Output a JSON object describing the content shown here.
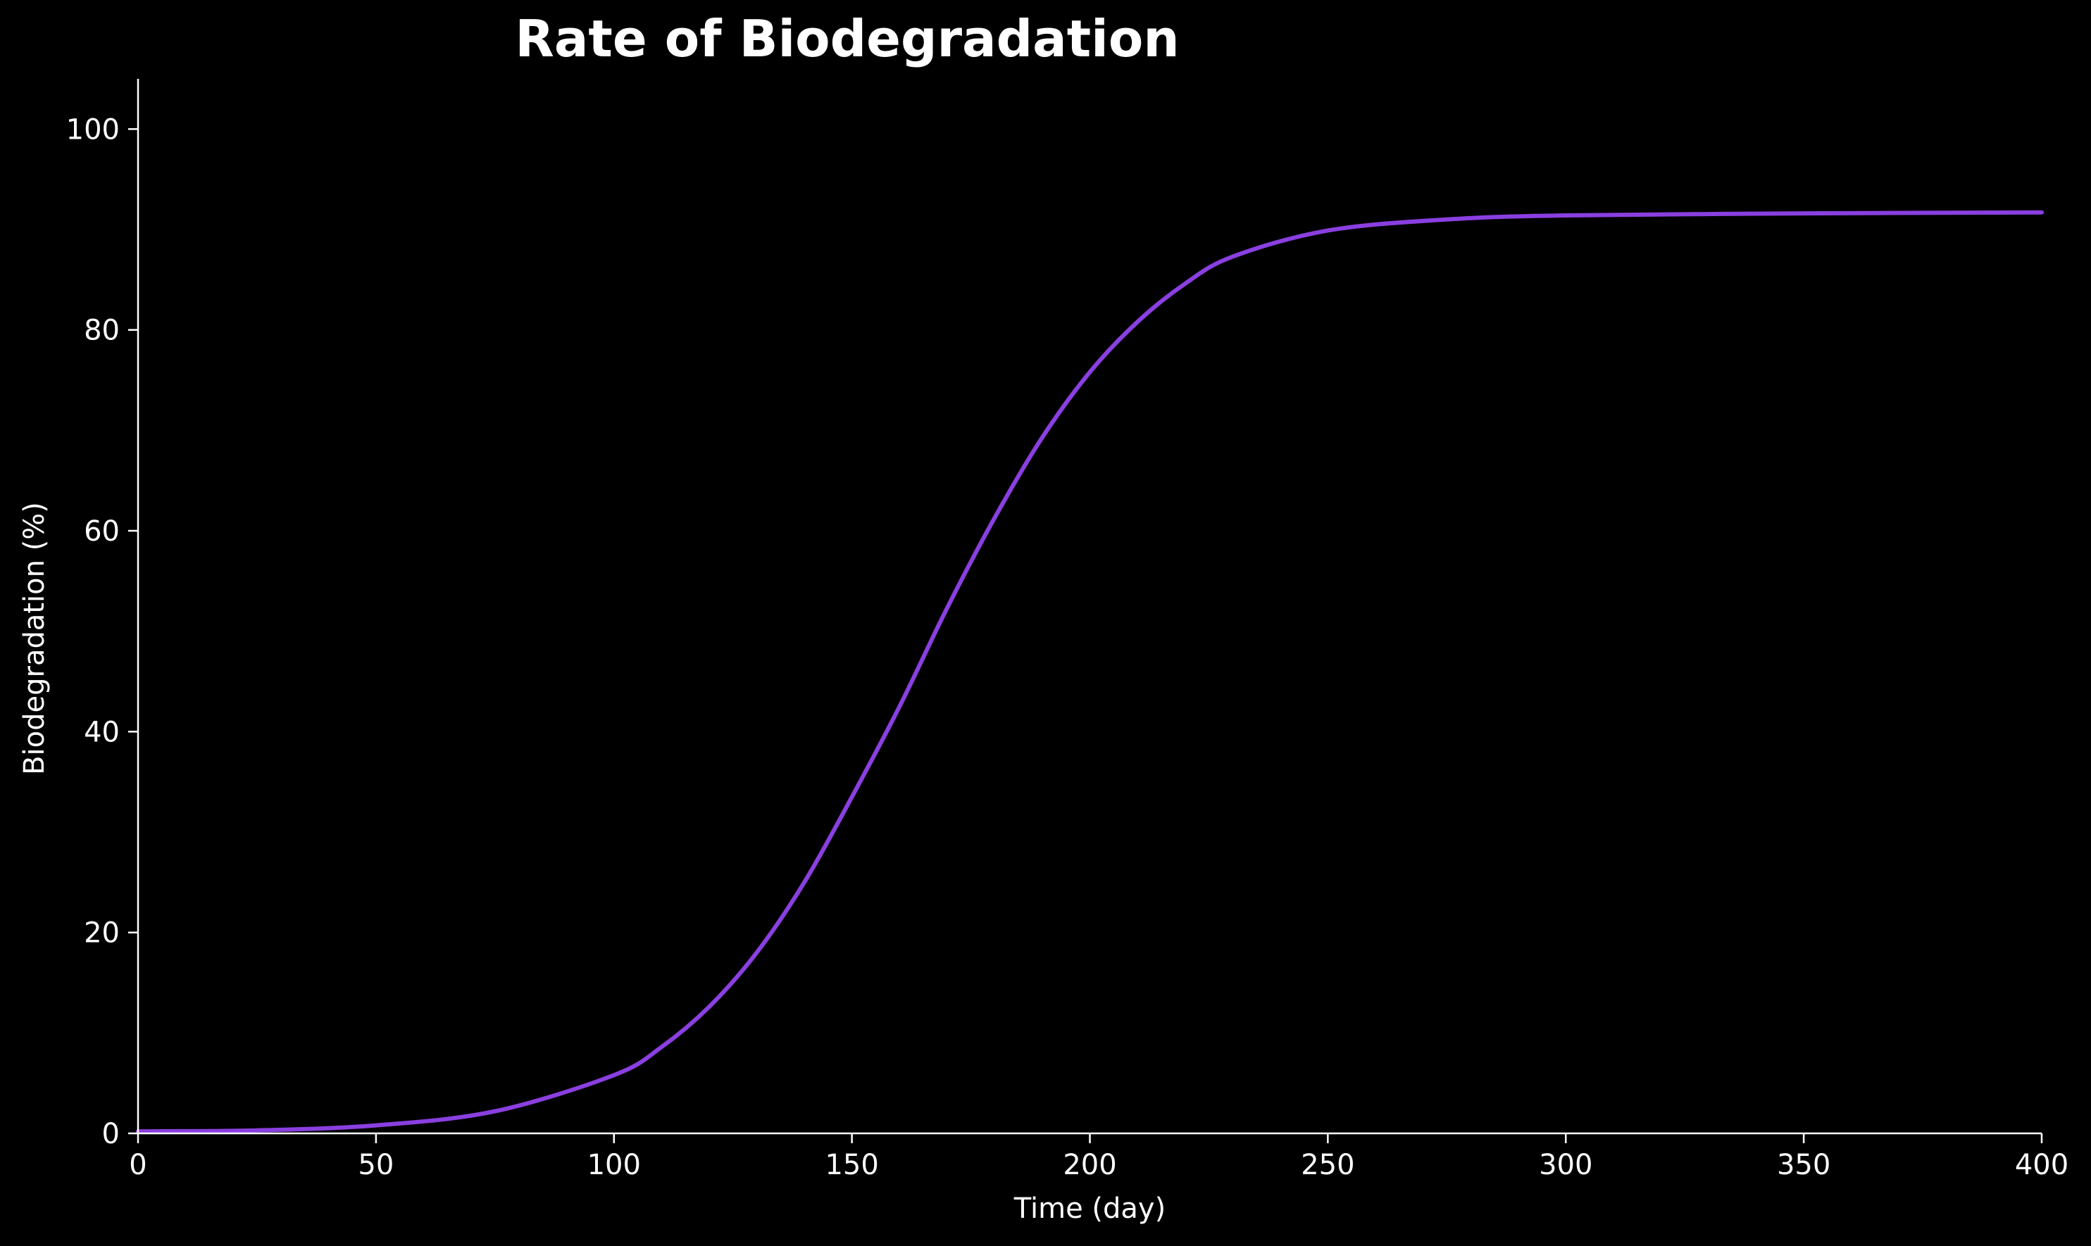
{
  "chart_data": {
    "type": "line",
    "title": "Rate of Biodegradation",
    "xlabel": "Time (day)",
    "ylabel": "Biodegradation (%)",
    "xlim": [
      0,
      400
    ],
    "ylim": [
      0,
      105
    ],
    "xticks": [
      "0",
      "50",
      "100",
      "150",
      "200",
      "250",
      "300",
      "350",
      "400"
    ],
    "yticks": [
      "0",
      "20",
      "40",
      "60",
      "80",
      "100"
    ],
    "grid": false,
    "series": [
      {
        "color": "#8a3fe0",
        "x": [
          0,
          25,
          50,
          75,
          100,
          110,
          120,
          130,
          140,
          150,
          160,
          170,
          180,
          190,
          200,
          210,
          220,
          230,
          250,
          275,
          300,
          350,
          400
        ],
        "y": [
          0.2,
          0.3,
          0.8,
          2.2,
          5.8,
          8.6,
          12.6,
          18.0,
          25.0,
          33.5,
          42.5,
          52.3,
          61.3,
          69.3,
          75.8,
          80.8,
          84.6,
          87.3,
          89.9,
          91.0,
          91.4,
          91.6,
          91.7
        ]
      }
    ]
  }
}
